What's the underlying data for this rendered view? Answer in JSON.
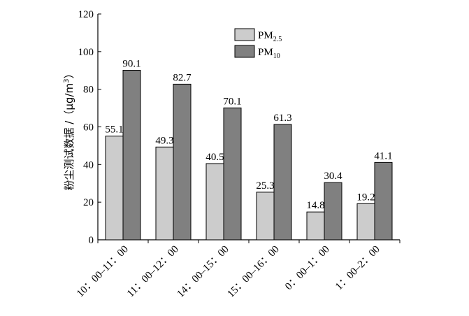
{
  "chart_data": {
    "type": "bar",
    "title": "",
    "xlabel": "",
    "ylabel": "粉尘测试数据 /（μg/m³）",
    "ylabel_parts": {
      "main": "粉尘测试数据 /（μg/m",
      "sup": "3",
      "end": "）"
    },
    "ylim": [
      0,
      120
    ],
    "yticks": [
      0,
      20,
      40,
      60,
      80,
      100,
      120
    ],
    "grid": false,
    "legend_position": "top-right",
    "categories": [
      "10：00–11：00",
      "11：00–12：00",
      "14：00–15：00",
      "15：00–16：00",
      "0：00–1：00",
      "1：00–2：00"
    ],
    "series": [
      {
        "name": "PM2.5",
        "name_main": "PM",
        "name_sub": "2.5",
        "color": "#cccccc",
        "values": [
          55.1,
          49.3,
          40.5,
          25.3,
          14.8,
          19.2
        ],
        "labels": [
          "55.1",
          "49.3",
          "40.5",
          "25.3",
          "14.8",
          "19.2"
        ]
      },
      {
        "name": "PM10",
        "name_main": "PM",
        "name_sub": "10",
        "color": "#808080",
        "values": [
          90.1,
          82.7,
          70.1,
          61.3,
          30.4,
          41.1
        ],
        "labels": [
          "90.1",
          "82.7",
          "70.1",
          "61.3",
          "30.4",
          "41.1"
        ]
      }
    ]
  }
}
